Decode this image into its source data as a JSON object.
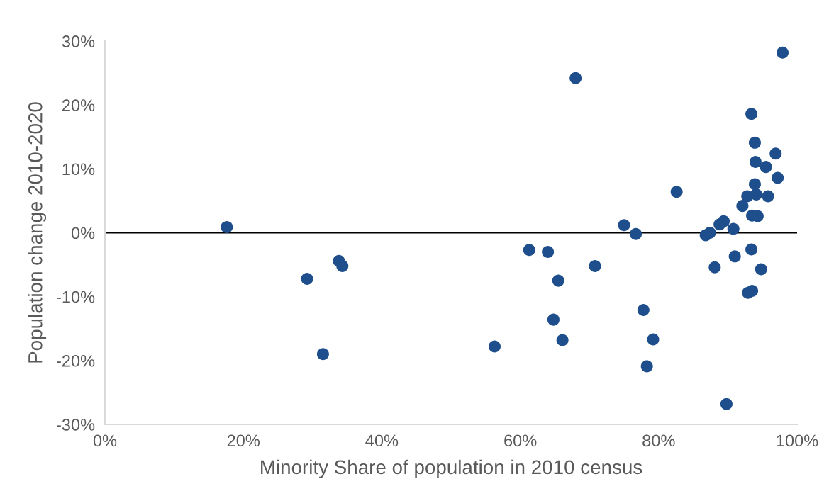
{
  "chart_data": {
    "type": "scatter",
    "xlabel": "Minority Share of population in 2010 census",
    "ylabel": "Population change 2010-2020",
    "x": [
      17.6,
      29.2,
      33.8,
      34.3,
      31.5,
      68.0,
      61.3,
      64.0,
      70.8,
      65.5,
      64.8,
      66.1,
      56.3,
      97.9,
      93.4,
      93.9,
      96.9,
      94.0,
      95.5,
      97.2,
      93.9,
      82.6,
      92.8,
      94.1,
      95.8,
      92.1,
      93.5,
      94.3,
      75.0,
      76.7,
      88.8,
      89.4,
      90.8,
      86.8,
      87.4,
      93.4,
      91.0,
      88.1,
      94.8,
      92.9,
      93.5,
      77.8,
      79.2,
      78.3,
      89.8
    ],
    "series": [
      {
        "color": "#1f4e8c",
        "values": [
          0.9,
          -7.2,
          -4.4,
          -5.2,
          -19.0,
          24.2,
          -2.7,
          -3.0,
          -5.2,
          -7.5,
          -13.6,
          -16.8,
          -17.8,
          28.2,
          18.6,
          14.1,
          12.4,
          11.1,
          10.3,
          8.6,
          7.6,
          6.4,
          5.7,
          6.0,
          5.7,
          4.2,
          2.7,
          2.6,
          1.2,
          -0.2,
          1.3,
          1.8,
          0.6,
          -0.4,
          0.0,
          -2.6,
          -3.7,
          -5.4,
          -5.7,
          -9.4,
          -9.1,
          -12.1,
          -16.7,
          -20.9,
          -26.8
        ]
      }
    ],
    "xlim": [
      0,
      100
    ],
    "xticks": [
      {
        "value": 0,
        "label": "0%"
      },
      {
        "value": 20,
        "label": "20%"
      },
      {
        "value": 40,
        "label": "40%"
      },
      {
        "value": 60,
        "label": "60%"
      },
      {
        "value": 80,
        "label": "80%"
      },
      {
        "value": 100,
        "label": "100%"
      }
    ],
    "ylim": [
      -30,
      30
    ],
    "yticks": [
      {
        "value": -30,
        "label": "-30%"
      },
      {
        "value": -20,
        "label": "-20%"
      },
      {
        "value": -10,
        "label": "-10%"
      },
      {
        "value": 0,
        "label": "0%"
      },
      {
        "value": 10,
        "label": "10%"
      },
      {
        "value": 20,
        "label": "20%"
      },
      {
        "value": 30,
        "label": "30%"
      }
    ],
    "ref_lines": [
      {
        "axis": "y",
        "value": 0,
        "color": "#000000",
        "line_style": "solid"
      }
    ],
    "marker": "circle",
    "grid": false,
    "legend": false
  }
}
